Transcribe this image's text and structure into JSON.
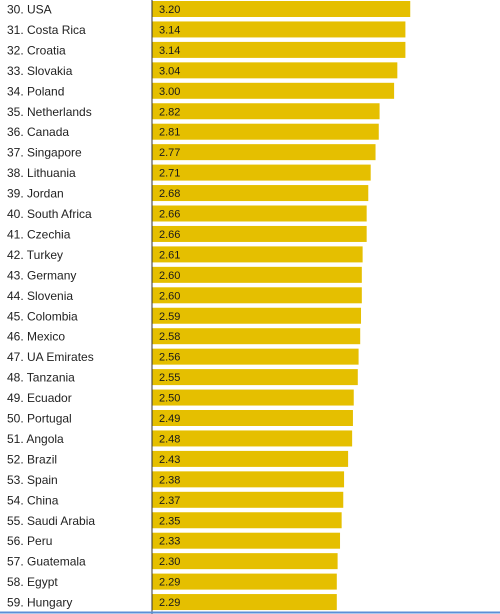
{
  "chart_data": {
    "type": "bar",
    "orientation": "horizontal",
    "categories": [
      "30. USA",
      "31. Costa Rica",
      "32. Croatia",
      "33. Slovakia",
      "34. Poland",
      "35. Netherlands",
      "36. Canada",
      "37. Singapore",
      "38. Lithuania",
      "39. Jordan",
      "40. South Africa",
      "41. Czechia",
      "42. Turkey",
      "43. Germany",
      "44. Slovenia",
      "45. Colombia",
      "46. Mexico",
      "47. UA Emirates",
      "48. Tanzania",
      "49. Ecuador",
      "50. Portugal",
      "51. Angola",
      "52. Brazil",
      "53. Spain",
      "54. China",
      "55. Saudi Arabia",
      "56. Peru",
      "57. Guatemala",
      "58. Egypt",
      "59. Hungary"
    ],
    "values": [
      3.2,
      3.14,
      3.14,
      3.04,
      3.0,
      2.82,
      2.81,
      2.77,
      2.71,
      2.68,
      2.66,
      2.66,
      2.61,
      2.6,
      2.6,
      2.59,
      2.58,
      2.56,
      2.55,
      2.5,
      2.49,
      2.48,
      2.43,
      2.38,
      2.37,
      2.35,
      2.33,
      2.3,
      2.29,
      2.29
    ],
    "value_labels": [
      "3.20",
      "3.14",
      "3.14",
      "3.04",
      "3.00",
      "2.82",
      "2.81",
      "2.77",
      "2.71",
      "2.68",
      "2.66",
      "2.66",
      "2.61",
      "2.60",
      "2.60",
      "2.59",
      "2.58",
      "2.56",
      "2.55",
      "2.50",
      "2.49",
      "2.48",
      "2.43",
      "2.38",
      "2.37",
      "2.35",
      "2.33",
      "2.30",
      "2.29",
      "2.29"
    ],
    "xlim": [
      0,
      3.28
    ],
    "grid": false,
    "colors": {
      "bar": "#e5bf00",
      "axis": "#333333",
      "text": "#222222",
      "bottom_rule": "#5b8fd6"
    }
  }
}
